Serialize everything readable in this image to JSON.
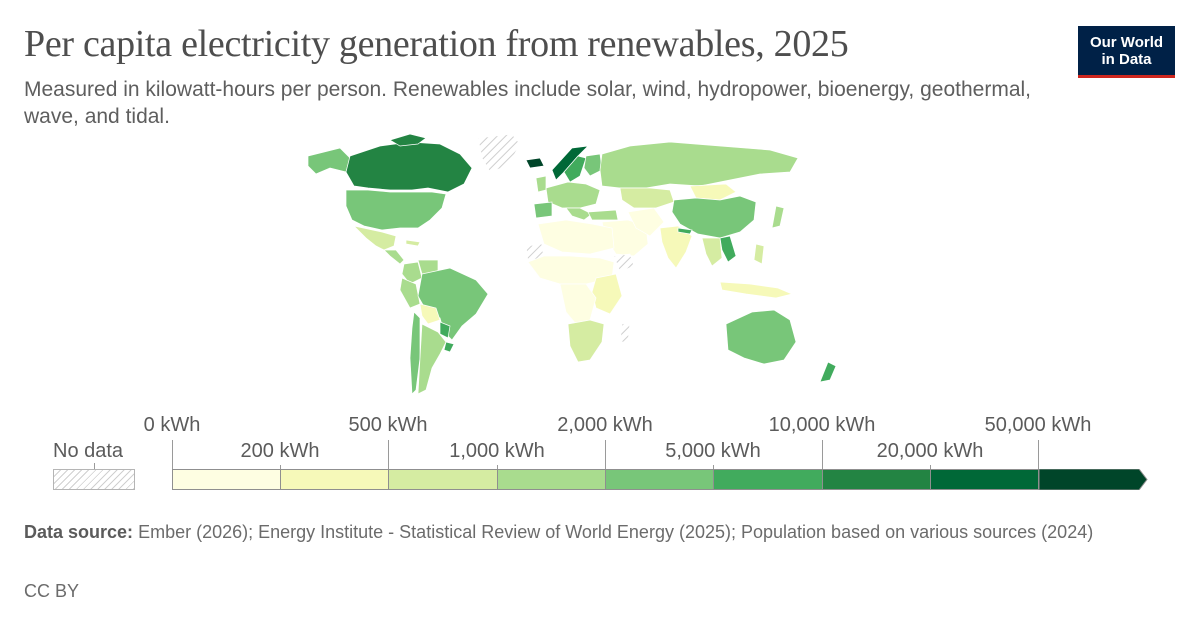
{
  "header": {
    "title": "Per capita electricity generation from renewables, 2025",
    "subtitle": "Measured in kilowatt-hours per person. Renewables include solar, wind, hydropower, bioenergy, geothermal, wave, and tidal."
  },
  "logo": {
    "line1": "Our World",
    "line2": "in Data"
  },
  "legend": {
    "no_data_label": "No data",
    "upper_labels": [
      "0 kWh",
      "500 kWh",
      "2,000 kWh",
      "10,000 kWh",
      "50,000 kWh"
    ],
    "lower_labels": [
      "200 kWh",
      "1,000 kWh",
      "5,000 kWh",
      "20,000 kWh"
    ],
    "bins": [
      {
        "from": 0,
        "to": 200,
        "color": "#fefee2"
      },
      {
        "from": 200,
        "to": 500,
        "color": "#f6f9b9"
      },
      {
        "from": 500,
        "to": 1000,
        "color": "#d5eca2"
      },
      {
        "from": 1000,
        "to": 2000,
        "color": "#a9dc8e"
      },
      {
        "from": 2000,
        "to": 5000,
        "color": "#78c679"
      },
      {
        "from": 5000,
        "to": 10000,
        "color": "#41ab5d"
      },
      {
        "from": 10000,
        "to": 20000,
        "color": "#238443"
      },
      {
        "from": 20000,
        "to": 50000,
        "color": "#006837"
      },
      {
        "from": 50000,
        "to": null,
        "color": "#004529"
      }
    ]
  },
  "footer": {
    "source_label": "Data source:",
    "source_text": "Ember (2026); Energy Institute - Statistical Review of World Energy (2025); Population based on various sources (2024)",
    "license": "CC BY"
  },
  "map_colors": {
    "canada": "#238443",
    "usa": "#78c679",
    "mexico": "#d5eca2",
    "central_america": "#a9dc8e",
    "greenland": "#d9d9d9",
    "alaska": "#78c679",
    "iceland": "#004529",
    "brazil": "#78c679",
    "colombia": "#a9dc8e",
    "venezuela": "#a9dc8e",
    "peru": "#a9dc8e",
    "bolivia": "#f6f9b9",
    "paraguay": "#41ab5d",
    "argentina": "#a9dc8e",
    "chile": "#78c679",
    "uruguay": "#41ab5d",
    "norway": "#006837",
    "sweden": "#41ab5d",
    "finland": "#78c679",
    "western_europe": "#a9dc8e",
    "iberia": "#78c679",
    "russia": "#a9dc8e",
    "kazakhstan": "#d5eca2",
    "mongolia": "#f6f9b9",
    "china": "#78c679",
    "india": "#f6f9b9",
    "middle_east": "#fefee2",
    "turkey": "#a9dc8e",
    "north_africa": "#fefee2",
    "sahel": "#fefee2",
    "east_africa": "#f6f9b9",
    "central_africa": "#fefee2",
    "southern_africa": "#d5eca2",
    "madagascar": "#d9d9d9",
    "southeast_asia": "#d5eca2",
    "laos": "#41ab5d",
    "indonesia": "#f6f9b9",
    "japan": "#a9dc8e",
    "australia": "#78c679",
    "new_zealand": "#41ab5d",
    "western_sahara": "#d9d9d9"
  }
}
